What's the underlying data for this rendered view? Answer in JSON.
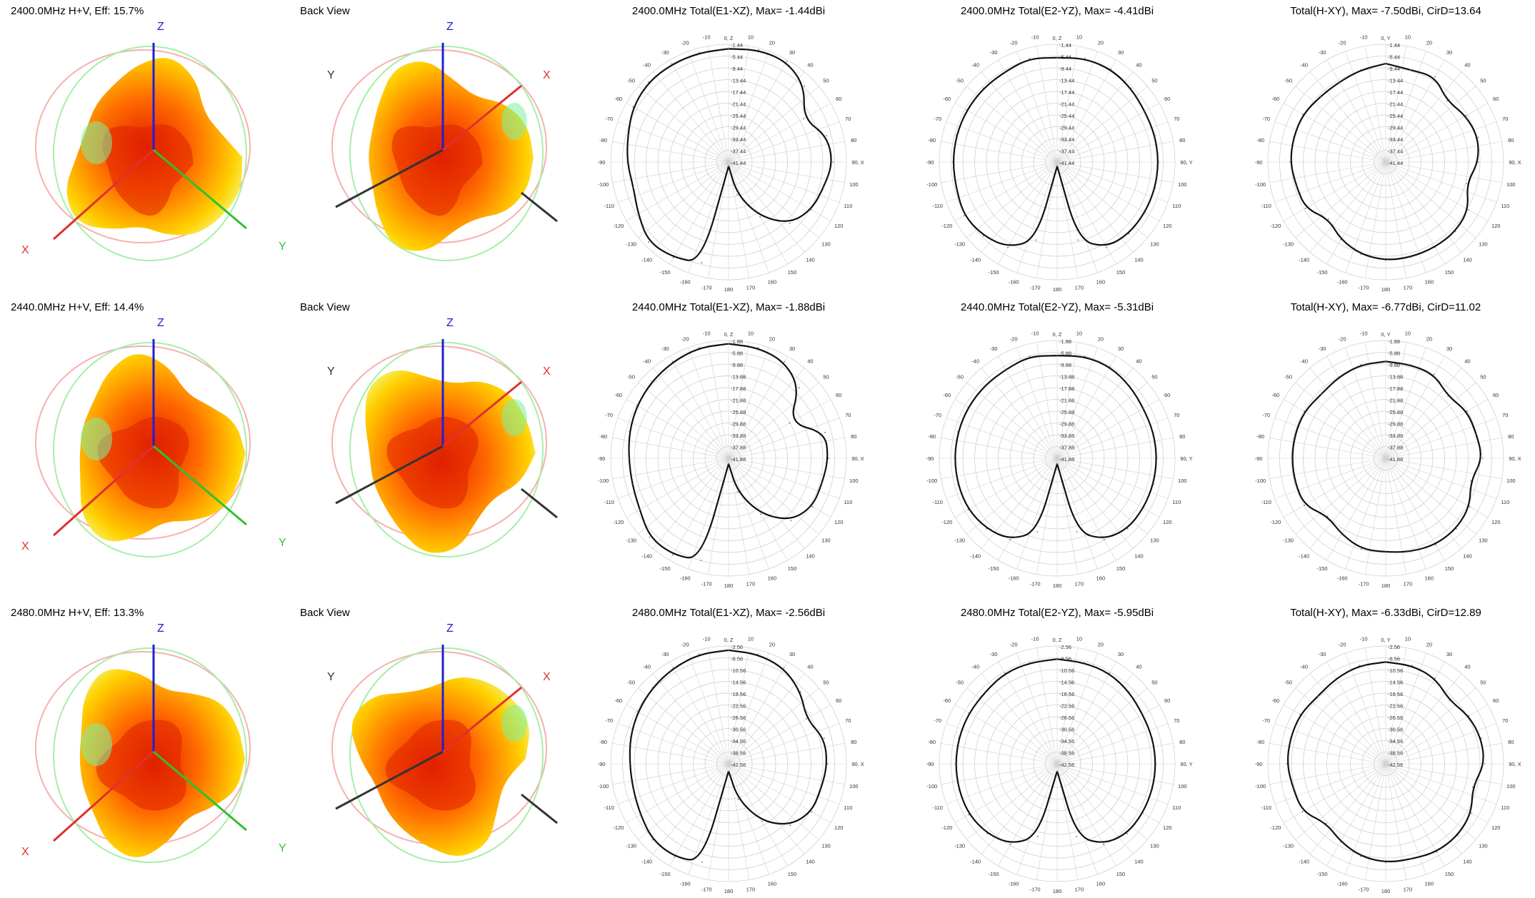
{
  "rows": [
    {
      "view3d_title": "2400.0MHz H+V, Eff: 15.7%",
      "back_title": "Back View",
      "polars": [
        {
          "title": "2400.0MHz Total(E1-XZ), Max= -1.44dBi",
          "axis_label_90": "90, X",
          "axis_label_0": "0, Z",
          "ring_labels": [
            "-1.44",
            "-5.44",
            "-9.44",
            "-13.44",
            "-17.44",
            "-21.44",
            "-25.44",
            "-29.44",
            "-33.44",
            "-37.44",
            "-41.44"
          ]
        },
        {
          "title": "2400.0MHz Total(E2-YZ), Max= -4.41dBi",
          "axis_label_90": "90, Y",
          "axis_label_0": "0, Z",
          "ring_labels": [
            "-1.44",
            "-5.44",
            "-9.44",
            "-13.44",
            "-17.44",
            "-21.44",
            "-25.44",
            "-29.44",
            "-33.44",
            "-37.44",
            "-41.44"
          ]
        },
        {
          "title": "Total(H-XY), Max= -7.50dBi, CirD=13.64",
          "axis_label_90": "90, X",
          "axis_label_0": "0, Y",
          "ring_labels": [
            "-1.44",
            "-5.44",
            "-9.44",
            "-13.44",
            "-17.44",
            "-21.44",
            "-25.44",
            "-29.44",
            "-33.44",
            "-37.44",
            "-41.44"
          ]
        }
      ]
    },
    {
      "view3d_title": "2440.0MHz H+V, Eff: 14.4%",
      "back_title": "Back View",
      "polars": [
        {
          "title": "2440.0MHz Total(E1-XZ), Max= -1.88dBi",
          "axis_label_90": "90, X",
          "axis_label_0": "0, Z",
          "ring_labels": [
            "-1.88",
            "-5.88",
            "-9.88",
            "-13.88",
            "-17.88",
            "-21.88",
            "-25.88",
            "-29.88",
            "-33.88",
            "-37.88",
            "-41.88"
          ]
        },
        {
          "title": "2440.0MHz Total(E2-YZ), Max= -5.31dBi",
          "axis_label_90": "90, Y",
          "axis_label_0": "0, Z",
          "ring_labels": [
            "-1.88",
            "-5.88",
            "-9.88",
            "-13.88",
            "-17.88",
            "-21.88",
            "-25.88",
            "-29.88",
            "-33.88",
            "-37.88",
            "-41.88"
          ]
        },
        {
          "title": "Total(H-XY), Max= -6.77dBi, CirD=11.02",
          "axis_label_90": "90, X",
          "axis_label_0": "0, Y",
          "ring_labels": [
            "-1.88",
            "-5.88",
            "-9.88",
            "-13.88",
            "-17.88",
            "-21.88",
            "-25.88",
            "-29.88",
            "-33.88",
            "-37.88",
            "-41.88"
          ]
        }
      ]
    },
    {
      "view3d_title": "2480.0MHz H+V, Eff: 13.3%",
      "back_title": "Back View",
      "polars": [
        {
          "title": "2480.0MHz Total(E1-XZ), Max= -2.56dBi",
          "axis_label_90": "90, X",
          "axis_label_0": "0, Z",
          "ring_labels": [
            "-2.56",
            "-6.56",
            "-10.56",
            "-14.56",
            "-18.56",
            "-22.56",
            "-26.56",
            "-30.56",
            "-34.56",
            "-38.56",
            "-42.56"
          ]
        },
        {
          "title": "2480.0MHz Total(E2-YZ), Max= -5.95dBi",
          "axis_label_90": "90, Y",
          "axis_label_0": "0, Z",
          "ring_labels": [
            "-2.56",
            "-6.56",
            "-10.56",
            "-14.56",
            "-18.56",
            "-22.56",
            "-26.56",
            "-30.56",
            "-34.56",
            "-38.56",
            "-42.56"
          ]
        },
        {
          "title": "Total(H-XY), Max= -6.33dBi, CirD=12.89",
          "axis_label_90": "90, X",
          "axis_label_0": "0, Y",
          "ring_labels": [
            "-2.56",
            "-6.56",
            "-10.56",
            "-14.56",
            "-18.56",
            "-22.56",
            "-26.56",
            "-30.56",
            "-34.56",
            "-38.56",
            "-42.56"
          ]
        }
      ]
    }
  ],
  "axis_letters": {
    "x": "X",
    "y": "Y",
    "z": "Z"
  },
  "angle_labels": [
    "10",
    "20",
    "30",
    "40",
    "50",
    "60",
    "70",
    "80",
    "100",
    "110",
    "120",
    "130",
    "140",
    "150",
    "160",
    "170",
    "180",
    "-10",
    "-20",
    "-30",
    "-40",
    "-50",
    "-60",
    "-70",
    "-80",
    "-90",
    "-100",
    "-110",
    "-120",
    "-130",
    "-140",
    "-150",
    "-160",
    "-170"
  ],
  "colors": {
    "pattern_trace": "#111111",
    "grid": "#d0d0d0",
    "x_axis": "#e03030",
    "y_axis": "#30c030",
    "z_axis": "#2020d0",
    "blob_hot": "#e02000",
    "blob_mid": "#ff6a00",
    "blob_warm": "#ffd000",
    "blob_cool": "#80f0a0"
  },
  "chart_data": [
    {
      "type": "polar",
      "title": "2400.0MHz Total(E1-XZ), Max= -1.44dBi",
      "r_range_dbi": [
        -41.44,
        -1.44
      ],
      "angles_deg": [
        0,
        15,
        30,
        45,
        60,
        75,
        90,
        105,
        120,
        135,
        150,
        165,
        179,
        181,
        195,
        210,
        225,
        240,
        255,
        270,
        285,
        300,
        315,
        330,
        345
      ],
      "values_dbi": [
        -3,
        -2,
        -2,
        -5,
        -12,
        -7,
        -6,
        -8,
        -9,
        -12,
        -20,
        -30,
        -40,
        -40,
        -6,
        -4,
        -3,
        -6,
        -8,
        -7,
        -6,
        -4,
        -3,
        -3,
        -3
      ]
    },
    {
      "type": "polar",
      "title": "2400.0MHz Total(E2-YZ), Max= -4.41dBi",
      "r_range_dbi": [
        -41.44,
        -1.44
      ],
      "angles_deg": [
        0,
        15,
        30,
        45,
        60,
        75,
        90,
        105,
        120,
        135,
        150,
        165,
        179,
        181,
        195,
        210,
        225,
        240,
        255,
        270,
        285,
        300,
        315,
        330,
        345
      ],
      "values_dbi": [
        -6,
        -5,
        -5,
        -6,
        -7,
        -7,
        -7,
        -7,
        -7,
        -7,
        -8,
        -14,
        -40,
        -40,
        -14,
        -8,
        -6,
        -5,
        -6,
        -6,
        -6,
        -6,
        -6,
        -6,
        -5
      ]
    },
    {
      "type": "polar",
      "title": "Total(H-XY), Max= -7.50dBi, CirD=13.64",
      "r_range_dbi": [
        -41.44,
        -1.44
      ],
      "angles_deg": [
        0,
        15,
        30,
        45,
        60,
        75,
        90,
        105,
        120,
        135,
        150,
        165,
        180,
        195,
        210,
        225,
        240,
        255,
        270,
        285,
        300,
        315,
        330,
        345
      ],
      "values_dbi": [
        -8,
        -9,
        -8,
        -12,
        -10,
        -9,
        -10,
        -13,
        -9,
        -8,
        -8,
        -8,
        -8,
        -9,
        -11,
        -14,
        -10,
        -10,
        -9,
        -9,
        -9,
        -10,
        -10,
        -9
      ]
    },
    {
      "type": "polar",
      "title": "2440.0MHz Total(E1-XZ), Max= -1.88dBi",
      "r_range_dbi": [
        -41.88,
        -1.88
      ],
      "angles_deg": [
        0,
        15,
        30,
        45,
        60,
        75,
        90,
        105,
        120,
        135,
        150,
        165,
        179,
        181,
        195,
        210,
        225,
        240,
        255,
        270,
        285,
        300,
        315,
        330,
        345
      ],
      "values_dbi": [
        -3,
        -3,
        -4,
        -8,
        -18,
        -8,
        -8,
        -9,
        -9,
        -12,
        -20,
        -30,
        -40,
        -40,
        -6,
        -4,
        -4,
        -7,
        -8,
        -8,
        -7,
        -6,
        -5,
        -4,
        -3
      ]
    },
    {
      "type": "polar",
      "title": "2440.0MHz Total(E2-YZ), Max= -5.31dBi",
      "r_range_dbi": [
        -41.88,
        -1.88
      ],
      "angles_deg": [
        0,
        15,
        30,
        45,
        60,
        75,
        90,
        105,
        120,
        135,
        150,
        165,
        179,
        181,
        195,
        210,
        225,
        240,
        255,
        270,
        285,
        300,
        315,
        330,
        345
      ],
      "values_dbi": [
        -7,
        -6,
        -6,
        -7,
        -8,
        -8,
        -8,
        -8,
        -8,
        -8,
        -10,
        -16,
        -40,
        -40,
        -16,
        -10,
        -8,
        -7,
        -7,
        -7,
        -7,
        -7,
        -7,
        -7,
        -6
      ]
    },
    {
      "type": "polar",
      "title": "Total(H-XY), Max= -6.77dBi, CirD=11.02",
      "r_range_dbi": [
        -41.88,
        -1.88
      ],
      "angles_deg": [
        0,
        15,
        30,
        45,
        60,
        75,
        90,
        105,
        120,
        135,
        150,
        165,
        180,
        195,
        210,
        225,
        240,
        255,
        270,
        285,
        300,
        315,
        330,
        345
      ],
      "values_dbi": [
        -9,
        -9,
        -9,
        -12,
        -10,
        -10,
        -9,
        -12,
        -9,
        -8,
        -8,
        -9,
        -10,
        -10,
        -12,
        -14,
        -10,
        -10,
        -10,
        -10,
        -10,
        -11,
        -10,
        -9
      ]
    },
    {
      "type": "polar",
      "title": "2480.0MHz Total(E1-XZ), Max= -2.56dBi",
      "r_range_dbi": [
        -42.56,
        -2.56
      ],
      "angles_deg": [
        0,
        15,
        30,
        45,
        60,
        75,
        90,
        105,
        120,
        135,
        150,
        165,
        179,
        181,
        195,
        210,
        225,
        240,
        255,
        270,
        285,
        300,
        315,
        330,
        345
      ],
      "values_dbi": [
        -4,
        -4,
        -5,
        -8,
        -12,
        -9,
        -9,
        -10,
        -10,
        -13,
        -20,
        -30,
        -40,
        -40,
        -8,
        -6,
        -6,
        -8,
        -9,
        -9,
        -8,
        -7,
        -6,
        -5,
        -4
      ]
    },
    {
      "type": "polar",
      "title": "2480.0MHz Total(E2-YZ), Max= -5.95dBi",
      "r_range_dbi": [
        -42.56,
        -2.56
      ],
      "angles_deg": [
        0,
        15,
        30,
        45,
        60,
        75,
        90,
        105,
        120,
        135,
        150,
        165,
        179,
        181,
        195,
        210,
        225,
        240,
        255,
        270,
        285,
        300,
        315,
        330,
        345
      ],
      "values_dbi": [
        -7,
        -7,
        -7,
        -8,
        -9,
        -9,
        -9,
        -9,
        -9,
        -9,
        -11,
        -17,
        -40,
        -40,
        -17,
        -11,
        -9,
        -8,
        -8,
        -8,
        -8,
        -8,
        -8,
        -7,
        -7
      ]
    },
    {
      "type": "polar",
      "title": "Total(H-XY), Max= -6.33dBi, CirD=12.89",
      "r_range_dbi": [
        -42.56,
        -2.56
      ],
      "angles_deg": [
        0,
        15,
        30,
        45,
        60,
        75,
        90,
        105,
        120,
        135,
        150,
        165,
        180,
        195,
        210,
        225,
        240,
        255,
        270,
        285,
        300,
        315,
        330,
        345
      ],
      "values_dbi": [
        -8,
        -8,
        -9,
        -12,
        -10,
        -9,
        -9,
        -12,
        -9,
        -8,
        -8,
        -9,
        -9,
        -10,
        -12,
        -14,
        -10,
        -10,
        -9,
        -9,
        -9,
        -10,
        -9,
        -8
      ]
    }
  ]
}
